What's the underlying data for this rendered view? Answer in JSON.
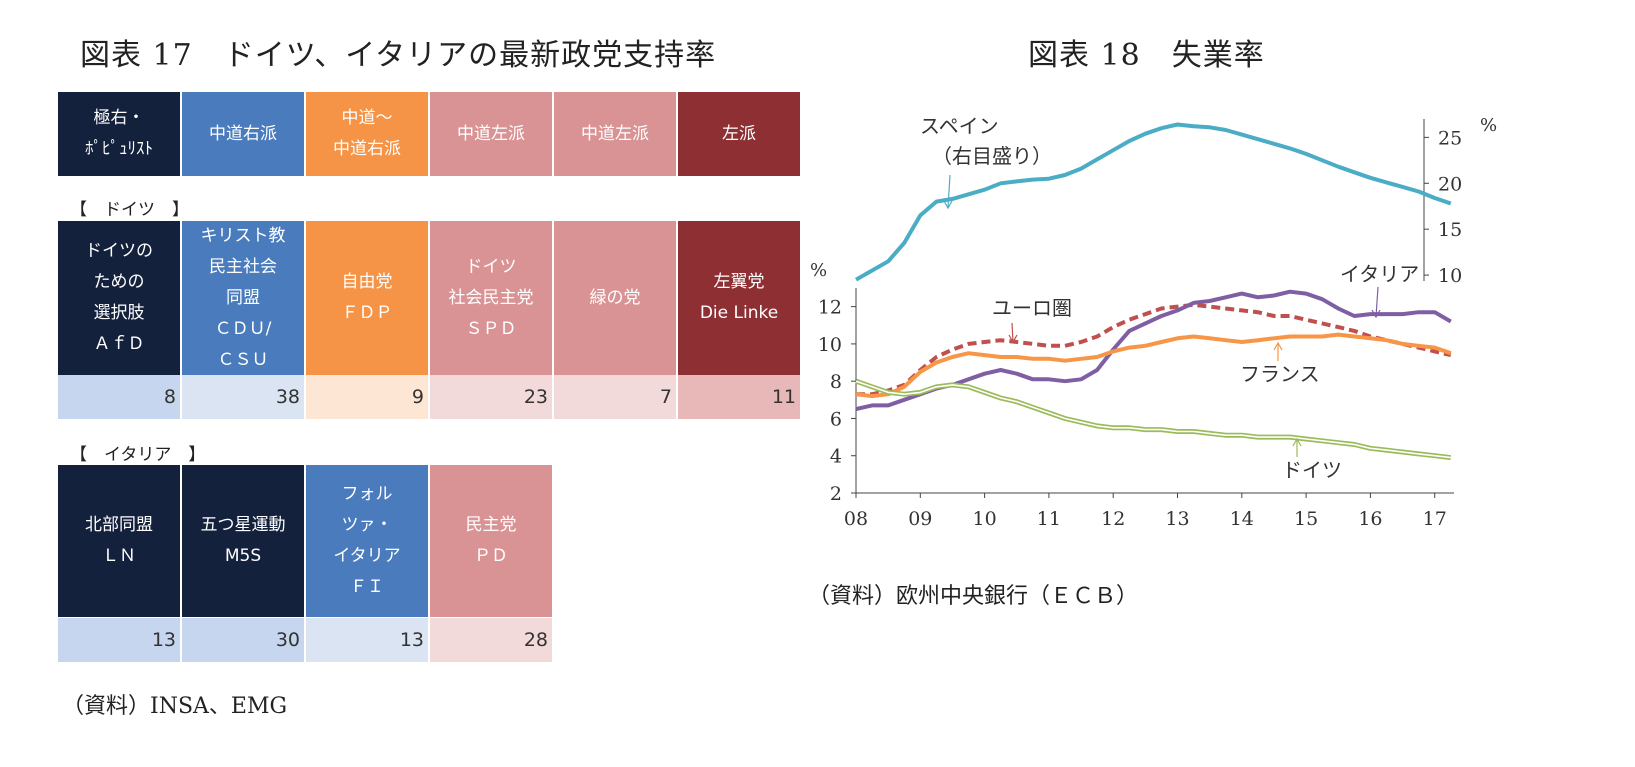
{
  "left": {
    "title": "図表 17　ドイツ、イタリアの最新政党支持率",
    "header": [
      {
        "label": "極右・\nﾎﾟﾋﾟｭﾘｽﾄ",
        "color": "#13213d"
      },
      {
        "label": "中道右派",
        "color": "#4a7bbd"
      },
      {
        "label": "中道～\n中道右派",
        "color": "#f59446"
      },
      {
        "label": "中道左派",
        "color": "#d99394"
      },
      {
        "label": "中道左派",
        "color": "#d99394"
      },
      {
        "label": "左派",
        "color": "#8e2f33"
      }
    ],
    "germany": {
      "section": "【　ドイツ　】",
      "parties": [
        {
          "label": "ドイツの\nための\n選択肢\nＡｆＤ",
          "color": "#13213d"
        },
        {
          "label": "キリスト教\n民主社会\n同盟\nＣＤＵ/\nＣＳＵ",
          "color": "#4a7bbd"
        },
        {
          "label": "自由党\nＦＤＰ",
          "color": "#f59446"
        },
        {
          "label": "ドイツ\n社会民主党\nＳＰＤ",
          "color": "#d99394"
        },
        {
          "label": "緑の党",
          "color": "#d99394"
        },
        {
          "label": "左翼党\nDie Linke",
          "color": "#8e2f33"
        }
      ],
      "values": [
        {
          "v": "8",
          "color": "#c5d6ee"
        },
        {
          "v": "38",
          "color": "#dbe4f2"
        },
        {
          "v": "9",
          "color": "#fde6d4"
        },
        {
          "v": "23",
          "color": "#f3dada"
        },
        {
          "v": "7",
          "color": "#f3dada"
        },
        {
          "v": "11",
          "color": "#e8b7b8"
        }
      ]
    },
    "italy": {
      "section": "【　イタリア　】",
      "parties": [
        {
          "label": "北部同盟\nＬＮ",
          "color": "#13213d"
        },
        {
          "label": "五つ星運動\nM5S",
          "color": "#13213d"
        },
        {
          "label": "フォル\nツァ・\nイタリア\nＦＩ",
          "color": "#4a7bbd"
        },
        {
          "label": "民主党\nＰＤ",
          "color": "#d99394"
        }
      ],
      "values": [
        {
          "v": "13",
          "color": "#c5d6ee"
        },
        {
          "v": "30",
          "color": "#c5d6ee"
        },
        {
          "v": "13",
          "color": "#dbe4f2"
        },
        {
          "v": "28",
          "color": "#f3dada"
        }
      ]
    },
    "source": "（資料）INSA、EMG"
  },
  "right": {
    "title": "図表 18　失業率",
    "source": "（資料）欧州中央銀行（ＥＣＢ）"
  },
  "chart_data": {
    "type": "line",
    "title": "図表 18　失業率",
    "x_ticks": [
      "08",
      "09",
      "10",
      "11",
      "12",
      "13",
      "14",
      "15",
      "16",
      "17"
    ],
    "xlim": [
      2008.0,
      2017.3
    ],
    "left_axis": {
      "unit": "%",
      "ylim": [
        2,
        13
      ],
      "ticks": [
        2,
        4,
        6,
        8,
        10,
        12
      ]
    },
    "right_axis": {
      "unit": "%",
      "ylim": [
        5,
        27
      ],
      "ticks": [
        10,
        15,
        20,
        25
      ]
    },
    "series": [
      {
        "name": "スペイン",
        "annotation": "スペイン\n（右目盛り）",
        "axis": "right",
        "color": "#4bacc6",
        "style": "solid",
        "x": [
          2008.0,
          2008.25,
          2008.5,
          2008.75,
          2009.0,
          2009.25,
          2009.5,
          2009.75,
          2010.0,
          2010.25,
          2010.5,
          2010.75,
          2011.0,
          2011.25,
          2011.5,
          2011.75,
          2012.0,
          2012.25,
          2012.5,
          2012.75,
          2013.0,
          2013.25,
          2013.5,
          2013.75,
          2014.0,
          2014.25,
          2014.5,
          2014.75,
          2015.0,
          2015.25,
          2015.5,
          2015.75,
          2016.0,
          2016.25,
          2016.5,
          2016.75,
          2017.0,
          2017.25
        ],
        "values": [
          9.5,
          10.5,
          11.5,
          13.5,
          16.5,
          18.0,
          18.3,
          18.8,
          19.3,
          20.0,
          20.2,
          20.4,
          20.5,
          20.9,
          21.6,
          22.6,
          23.6,
          24.6,
          25.4,
          26.0,
          26.4,
          26.2,
          26.1,
          25.8,
          25.3,
          24.8,
          24.3,
          23.8,
          23.2,
          22.5,
          21.8,
          21.2,
          20.6,
          20.1,
          19.6,
          19.1,
          18.4,
          17.8
        ]
      },
      {
        "name": "ユーロ圏",
        "axis": "left",
        "color": "#c0504d",
        "style": "dashed",
        "x": [
          2008.0,
          2008.25,
          2008.5,
          2008.75,
          2009.0,
          2009.25,
          2009.5,
          2009.75,
          2010.0,
          2010.25,
          2010.5,
          2010.75,
          2011.0,
          2011.25,
          2011.5,
          2011.75,
          2012.0,
          2012.25,
          2012.5,
          2012.75,
          2013.0,
          2013.25,
          2013.5,
          2013.75,
          2014.0,
          2014.25,
          2014.5,
          2014.75,
          2015.0,
          2015.25,
          2015.5,
          2015.75,
          2016.0,
          2016.25,
          2016.5,
          2016.75,
          2017.0,
          2017.25
        ],
        "values": [
          7.3,
          7.3,
          7.5,
          7.8,
          8.6,
          9.3,
          9.7,
          10.0,
          10.1,
          10.2,
          10.1,
          10.0,
          9.9,
          9.9,
          10.1,
          10.4,
          10.9,
          11.3,
          11.6,
          11.9,
          12.0,
          12.1,
          12.0,
          11.9,
          11.8,
          11.7,
          11.5,
          11.5,
          11.3,
          11.1,
          10.9,
          10.7,
          10.4,
          10.2,
          10.0,
          9.8,
          9.6,
          9.4
        ]
      },
      {
        "name": "イタリア",
        "axis": "left",
        "color": "#7f5fa3",
        "style": "solid",
        "x": [
          2008.0,
          2008.25,
          2008.5,
          2008.75,
          2009.0,
          2009.25,
          2009.5,
          2009.75,
          2010.0,
          2010.25,
          2010.5,
          2010.75,
          2011.0,
          2011.25,
          2011.5,
          2011.75,
          2012.0,
          2012.25,
          2012.5,
          2012.75,
          2013.0,
          2013.25,
          2013.5,
          2013.75,
          2014.0,
          2014.25,
          2014.5,
          2014.75,
          2015.0,
          2015.25,
          2015.5,
          2015.75,
          2016.0,
          2016.25,
          2016.5,
          2016.75,
          2017.0,
          2017.25
        ],
        "values": [
          6.5,
          6.7,
          6.7,
          7.0,
          7.3,
          7.6,
          7.8,
          8.1,
          8.4,
          8.6,
          8.4,
          8.1,
          8.1,
          8.0,
          8.1,
          8.6,
          9.7,
          10.7,
          11.1,
          11.5,
          11.8,
          12.2,
          12.3,
          12.5,
          12.7,
          12.5,
          12.6,
          12.8,
          12.7,
          12.4,
          11.9,
          11.5,
          11.6,
          11.6,
          11.6,
          11.7,
          11.7,
          11.2
        ]
      },
      {
        "name": "フランス",
        "axis": "left",
        "color": "#f79646",
        "style": "solid",
        "x": [
          2008.0,
          2008.25,
          2008.5,
          2008.75,
          2009.0,
          2009.25,
          2009.5,
          2009.75,
          2010.0,
          2010.25,
          2010.5,
          2010.75,
          2011.0,
          2011.25,
          2011.5,
          2011.75,
          2012.0,
          2012.25,
          2012.5,
          2012.75,
          2013.0,
          2013.25,
          2013.5,
          2013.75,
          2014.0,
          2014.25,
          2014.5,
          2014.75,
          2015.0,
          2015.25,
          2015.5,
          2015.75,
          2016.0,
          2016.25,
          2016.5,
          2016.75,
          2017.0,
          2017.25
        ],
        "values": [
          7.3,
          7.2,
          7.3,
          7.7,
          8.5,
          9.0,
          9.3,
          9.5,
          9.4,
          9.3,
          9.3,
          9.2,
          9.2,
          9.1,
          9.2,
          9.3,
          9.6,
          9.8,
          9.9,
          10.1,
          10.3,
          10.4,
          10.3,
          10.2,
          10.1,
          10.2,
          10.3,
          10.4,
          10.4,
          10.4,
          10.5,
          10.4,
          10.3,
          10.2,
          10.0,
          9.9,
          9.8,
          9.5
        ]
      },
      {
        "name": "ドイツ",
        "axis": "left",
        "color": "#9bbb59",
        "style": "double",
        "x": [
          2008.0,
          2008.25,
          2008.5,
          2008.75,
          2009.0,
          2009.25,
          2009.5,
          2009.75,
          2010.0,
          2010.25,
          2010.5,
          2010.75,
          2011.0,
          2011.25,
          2011.5,
          2011.75,
          2012.0,
          2012.25,
          2012.5,
          2012.75,
          2013.0,
          2013.25,
          2013.5,
          2013.75,
          2014.0,
          2014.25,
          2014.5,
          2014.75,
          2015.0,
          2015.25,
          2015.5,
          2015.75,
          2016.0,
          2016.25,
          2016.5,
          2016.75,
          2017.0,
          2017.25
        ],
        "values": [
          8.0,
          7.7,
          7.4,
          7.3,
          7.4,
          7.7,
          7.8,
          7.7,
          7.4,
          7.1,
          6.9,
          6.6,
          6.3,
          6.0,
          5.8,
          5.6,
          5.5,
          5.5,
          5.4,
          5.4,
          5.3,
          5.3,
          5.2,
          5.1,
          5.1,
          5.0,
          5.0,
          5.0,
          4.9,
          4.8,
          4.7,
          4.6,
          4.4,
          4.3,
          4.2,
          4.1,
          4.0,
          3.9
        ]
      }
    ]
  }
}
